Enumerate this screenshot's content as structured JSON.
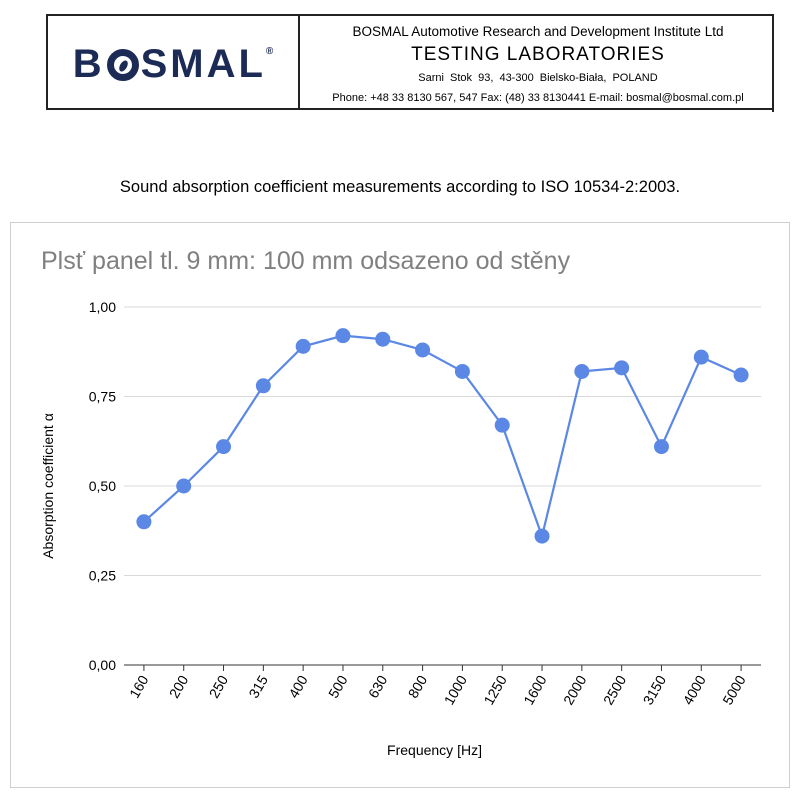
{
  "header": {
    "logo_text": "B",
    "logo_rest": "SMAL",
    "logo_reg": "®",
    "institute": "BOSMAL Automotive Research and Development Institute Ltd",
    "lab": "TESTING  LABORATORIES",
    "address": "Sarni Stok 93,   43-300 Bielsko-Biała,   POLAND",
    "contact": "Phone: +48 33 8130 567,  547  Fax: (48) 33 8130441  E-mail: bosmal@bosmal.com.pl"
  },
  "subtitle": "Sound absorption coefficient measurements according to ISO 10534-2:2003.",
  "colors": {
    "series": "#5b87e5",
    "grid": "#d9d9d9",
    "title": "#808080"
  },
  "chart_data": {
    "type": "line",
    "title": "Plsť panel tl. 9 mm: 100 mm odsazeno od stěny",
    "xlabel": "Frequency [Hz]",
    "ylabel": "Absorption coefficient α",
    "categories": [
      "160",
      "200",
      "250",
      "315",
      "400",
      "500",
      "630",
      "800",
      "1000",
      "1250",
      "1600",
      "2000",
      "2500",
      "3150",
      "4000",
      "5000"
    ],
    "series": [
      {
        "values": [
          0.4,
          0.5,
          0.61,
          0.78,
          0.89,
          0.92,
          0.91,
          0.88,
          0.82,
          0.67,
          0.36,
          0.82,
          0.83,
          0.61,
          0.86,
          0.81
        ]
      }
    ],
    "ylim": [
      0,
      1
    ],
    "yticks": [
      0,
      0.25,
      0.5,
      0.75,
      1
    ],
    "ytick_labels": [
      "0,00",
      "0,25",
      "0,50",
      "0,75",
      "1,00"
    ],
    "grid": true,
    "legend": "none"
  }
}
